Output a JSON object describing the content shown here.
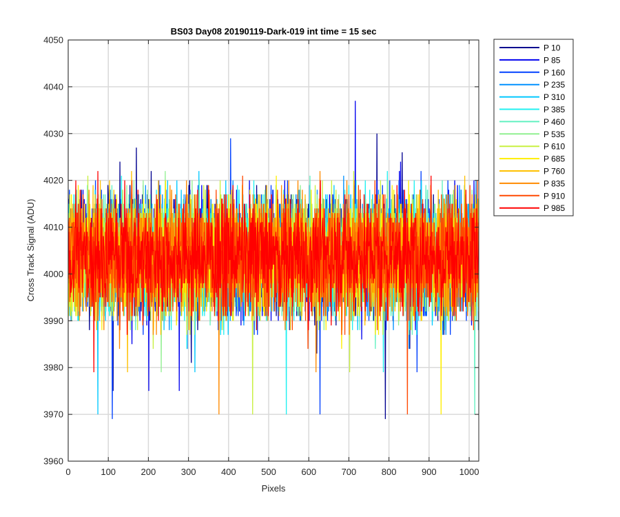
{
  "chart_data": {
    "type": "line",
    "title": "BS03 Day08 20190119-Dark-019 int time = 15 sec",
    "xlabel": "Pixels",
    "ylabel": "Cross Track Signal (ADU)",
    "xlim": [
      0,
      1024
    ],
    "ylim": [
      3960,
      4050
    ],
    "xticks": [
      0,
      100,
      200,
      300,
      400,
      500,
      600,
      700,
      800,
      900,
      1000
    ],
    "yticks": [
      3960,
      3970,
      3980,
      3990,
      4000,
      4010,
      4020,
      4030,
      4040,
      4050
    ],
    "grid": true,
    "legend_position": "outside-top-right",
    "signal_mean": 4004,
    "signal_range": [
      3969,
      4046
    ],
    "series": [
      {
        "name": "P 10",
        "color": "#00008f"
      },
      {
        "name": "P 85",
        "color": "#0000ef"
      },
      {
        "name": "P 160",
        "color": "#0040ff"
      },
      {
        "name": "P 235",
        "color": "#0090ff"
      },
      {
        "name": "P 310",
        "color": "#00c8ff"
      },
      {
        "name": "P 385",
        "color": "#20f0f0"
      },
      {
        "name": "P 460",
        "color": "#60f0c0"
      },
      {
        "name": "P 535",
        "color": "#90f090"
      },
      {
        "name": "P 610",
        "color": "#c8f040"
      },
      {
        "name": "P 685",
        "color": "#ffee00"
      },
      {
        "name": "P 760",
        "color": "#ffc000"
      },
      {
        "name": "P 835",
        "color": "#ff8a00"
      },
      {
        "name": "P 910",
        "color": "#ff4800"
      },
      {
        "name": "P 985",
        "color": "#ff0000"
      }
    ]
  }
}
